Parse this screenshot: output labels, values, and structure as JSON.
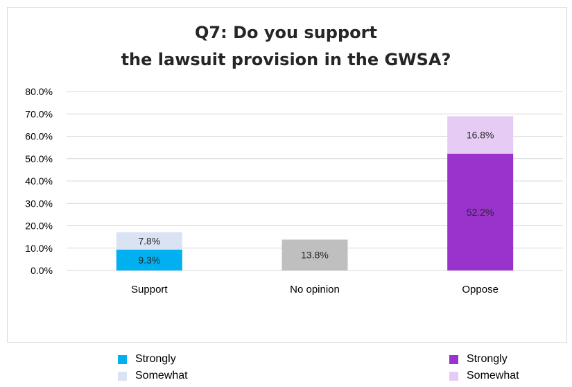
{
  "chart_data": {
    "type": "bar",
    "stacked": true,
    "title_lines": [
      "Q7: Do you support",
      "the lawsuit provision in the GWSA?"
    ],
    "categories": [
      "Support",
      "No opinion",
      "Oppose"
    ],
    "ylim": [
      0,
      80
    ],
    "yticks": [
      "0.0%",
      "10.0%",
      "20.0%",
      "30.0%",
      "40.0%",
      "50.0%",
      "60.0%",
      "70.0%",
      "80.0%"
    ],
    "grid": true,
    "bars": [
      {
        "category": "Support",
        "segments": [
          {
            "value": 9.3,
            "label": "9.3%",
            "color": "#00b0f0"
          },
          {
            "value": 7.8,
            "label": "7.8%",
            "color": "#dae3f3"
          }
        ]
      },
      {
        "category": "No opinion",
        "segments": [
          {
            "value": 13.8,
            "label": "13.8%",
            "color": "#bfbfbf"
          }
        ]
      },
      {
        "category": "Oppose",
        "segments": [
          {
            "value": 52.2,
            "label": "52.2%",
            "color": "#9933cc"
          },
          {
            "value": 16.8,
            "label": "16.8%",
            "color": "#e6ccf5"
          }
        ]
      }
    ]
  },
  "legend_left": [
    {
      "label": "Strongly",
      "color": "#00b0f0"
    },
    {
      "label": "Somewhat",
      "color": "#dae3f3"
    }
  ],
  "legend_right": [
    {
      "label": "Strongly",
      "color": "#9933cc"
    },
    {
      "label": "Somewhat",
      "color": "#e6ccf5"
    }
  ]
}
